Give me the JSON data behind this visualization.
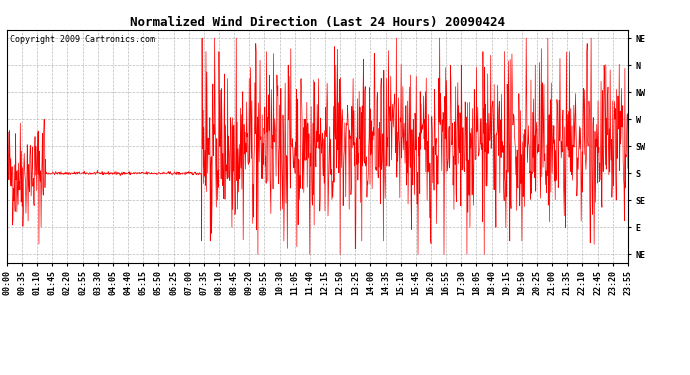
{
  "title": "Normalized Wind Direction (Last 24 Hours) 20090424",
  "copyright_text": "Copyright 2009 Cartronics.com",
  "line_color": "#FF0000",
  "background_color": "#FFFFFF",
  "grid_color": "#AAAAAA",
  "ytick_labels": [
    "NE",
    "N",
    "NW",
    "W",
    "SW",
    "S",
    "SE",
    "E",
    "NE"
  ],
  "ytick_values": [
    8,
    7,
    6,
    5,
    4,
    3,
    2,
    1,
    0
  ],
  "ylim": [
    -0.3,
    8.3
  ],
  "total_minutes": 1435,
  "seed": 42,
  "title_fontsize": 9,
  "tick_fontsize": 6,
  "copyright_fontsize": 6
}
